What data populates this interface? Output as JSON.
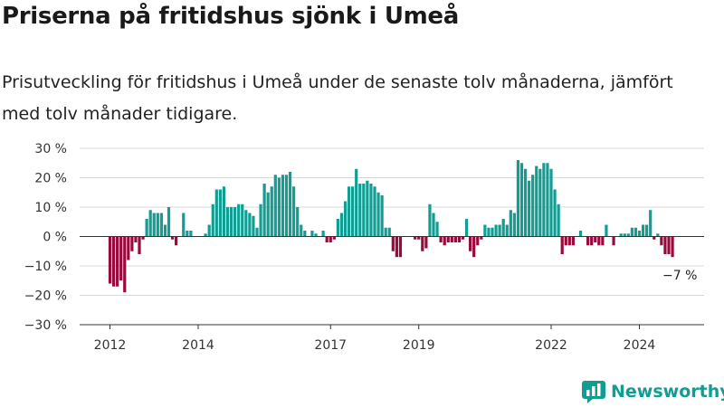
{
  "title": "Priserna på fritidshus sjönk i Umeå",
  "subtitle": "Prisutveckling för fritidshus i Umeå under de senaste tolv månaderna, jämfört med tolv månader tidigare.",
  "brand": {
    "name": "Newsworthy",
    "icon": "newsworthy-logo-icon"
  },
  "colors": {
    "positive": "#129d93",
    "negative": "#960a3c",
    "grid": "#d8d8d8",
    "axis": "#333333"
  },
  "chart_data": {
    "type": "bar",
    "title": "Priserna på fritidshus sjönk i Umeå",
    "ylim": [
      -30,
      30
    ],
    "y_ticks": [
      {
        "value": 30,
        "label": "30 %"
      },
      {
        "value": 20,
        "label": "20 %"
      },
      {
        "value": 10,
        "label": "10 %"
      },
      {
        "value": 0,
        "label": "0 %"
      },
      {
        "value": -10,
        "label": "−10 %"
      },
      {
        "value": -20,
        "label": "−20 %"
      },
      {
        "value": -30,
        "label": "−30 %"
      }
    ],
    "x_ticks": [
      {
        "date": "2012-01",
        "label": "2012"
      },
      {
        "date": "2014-01",
        "label": "2014"
      },
      {
        "date": "2017-01",
        "label": "2017"
      },
      {
        "date": "2019-01",
        "label": "2019"
      },
      {
        "date": "2022-01",
        "label": "2022"
      },
      {
        "date": "2024-01",
        "label": "2024"
      }
    ],
    "grid": true,
    "annotation": {
      "text": "−7 %",
      "date": "2024-12"
    },
    "series": [
      {
        "start": "2012-01",
        "values": [
          -16,
          -17,
          -17,
          -15,
          -19,
          -8,
          -5,
          -2,
          -6,
          -1,
          6,
          9,
          8,
          8,
          8,
          4,
          10,
          -1,
          -3,
          0,
          8,
          2,
          2,
          0,
          0,
          0,
          1,
          4,
          11,
          16,
          16,
          17,
          10,
          10,
          10,
          11,
          11,
          9,
          8,
          7,
          3,
          11,
          18,
          15,
          17,
          21,
          20,
          21,
          21,
          22,
          17,
          10,
          4,
          2,
          0,
          2,
          1,
          0,
          2,
          -2,
          -2,
          -1,
          6,
          8,
          12,
          17,
          17,
          23,
          18,
          18,
          19,
          18,
          17,
          15,
          14,
          3,
          3,
          -5,
          -7,
          -7,
          0,
          0,
          0,
          -1,
          -1,
          -5,
          -4,
          11,
          8,
          5,
          -2,
          -3,
          -2,
          -2,
          -2,
          -2,
          -1,
          6,
          -5,
          -7,
          -3,
          -1,
          4,
          3,
          3,
          4,
          4,
          6,
          4,
          9,
          8,
          26,
          25,
          23,
          19,
          21,
          24,
          23,
          25,
          25,
          23,
          16,
          11,
          -6,
          -3,
          -3,
          -3,
          0,
          2,
          0,
          -3,
          -3,
          -2,
          -3,
          -3,
          4,
          0,
          -3,
          0,
          1,
          1,
          1,
          3,
          3,
          2,
          4,
          4,
          9,
          -1,
          1,
          -3,
          -6,
          -6,
          -7
        ]
      }
    ]
  }
}
